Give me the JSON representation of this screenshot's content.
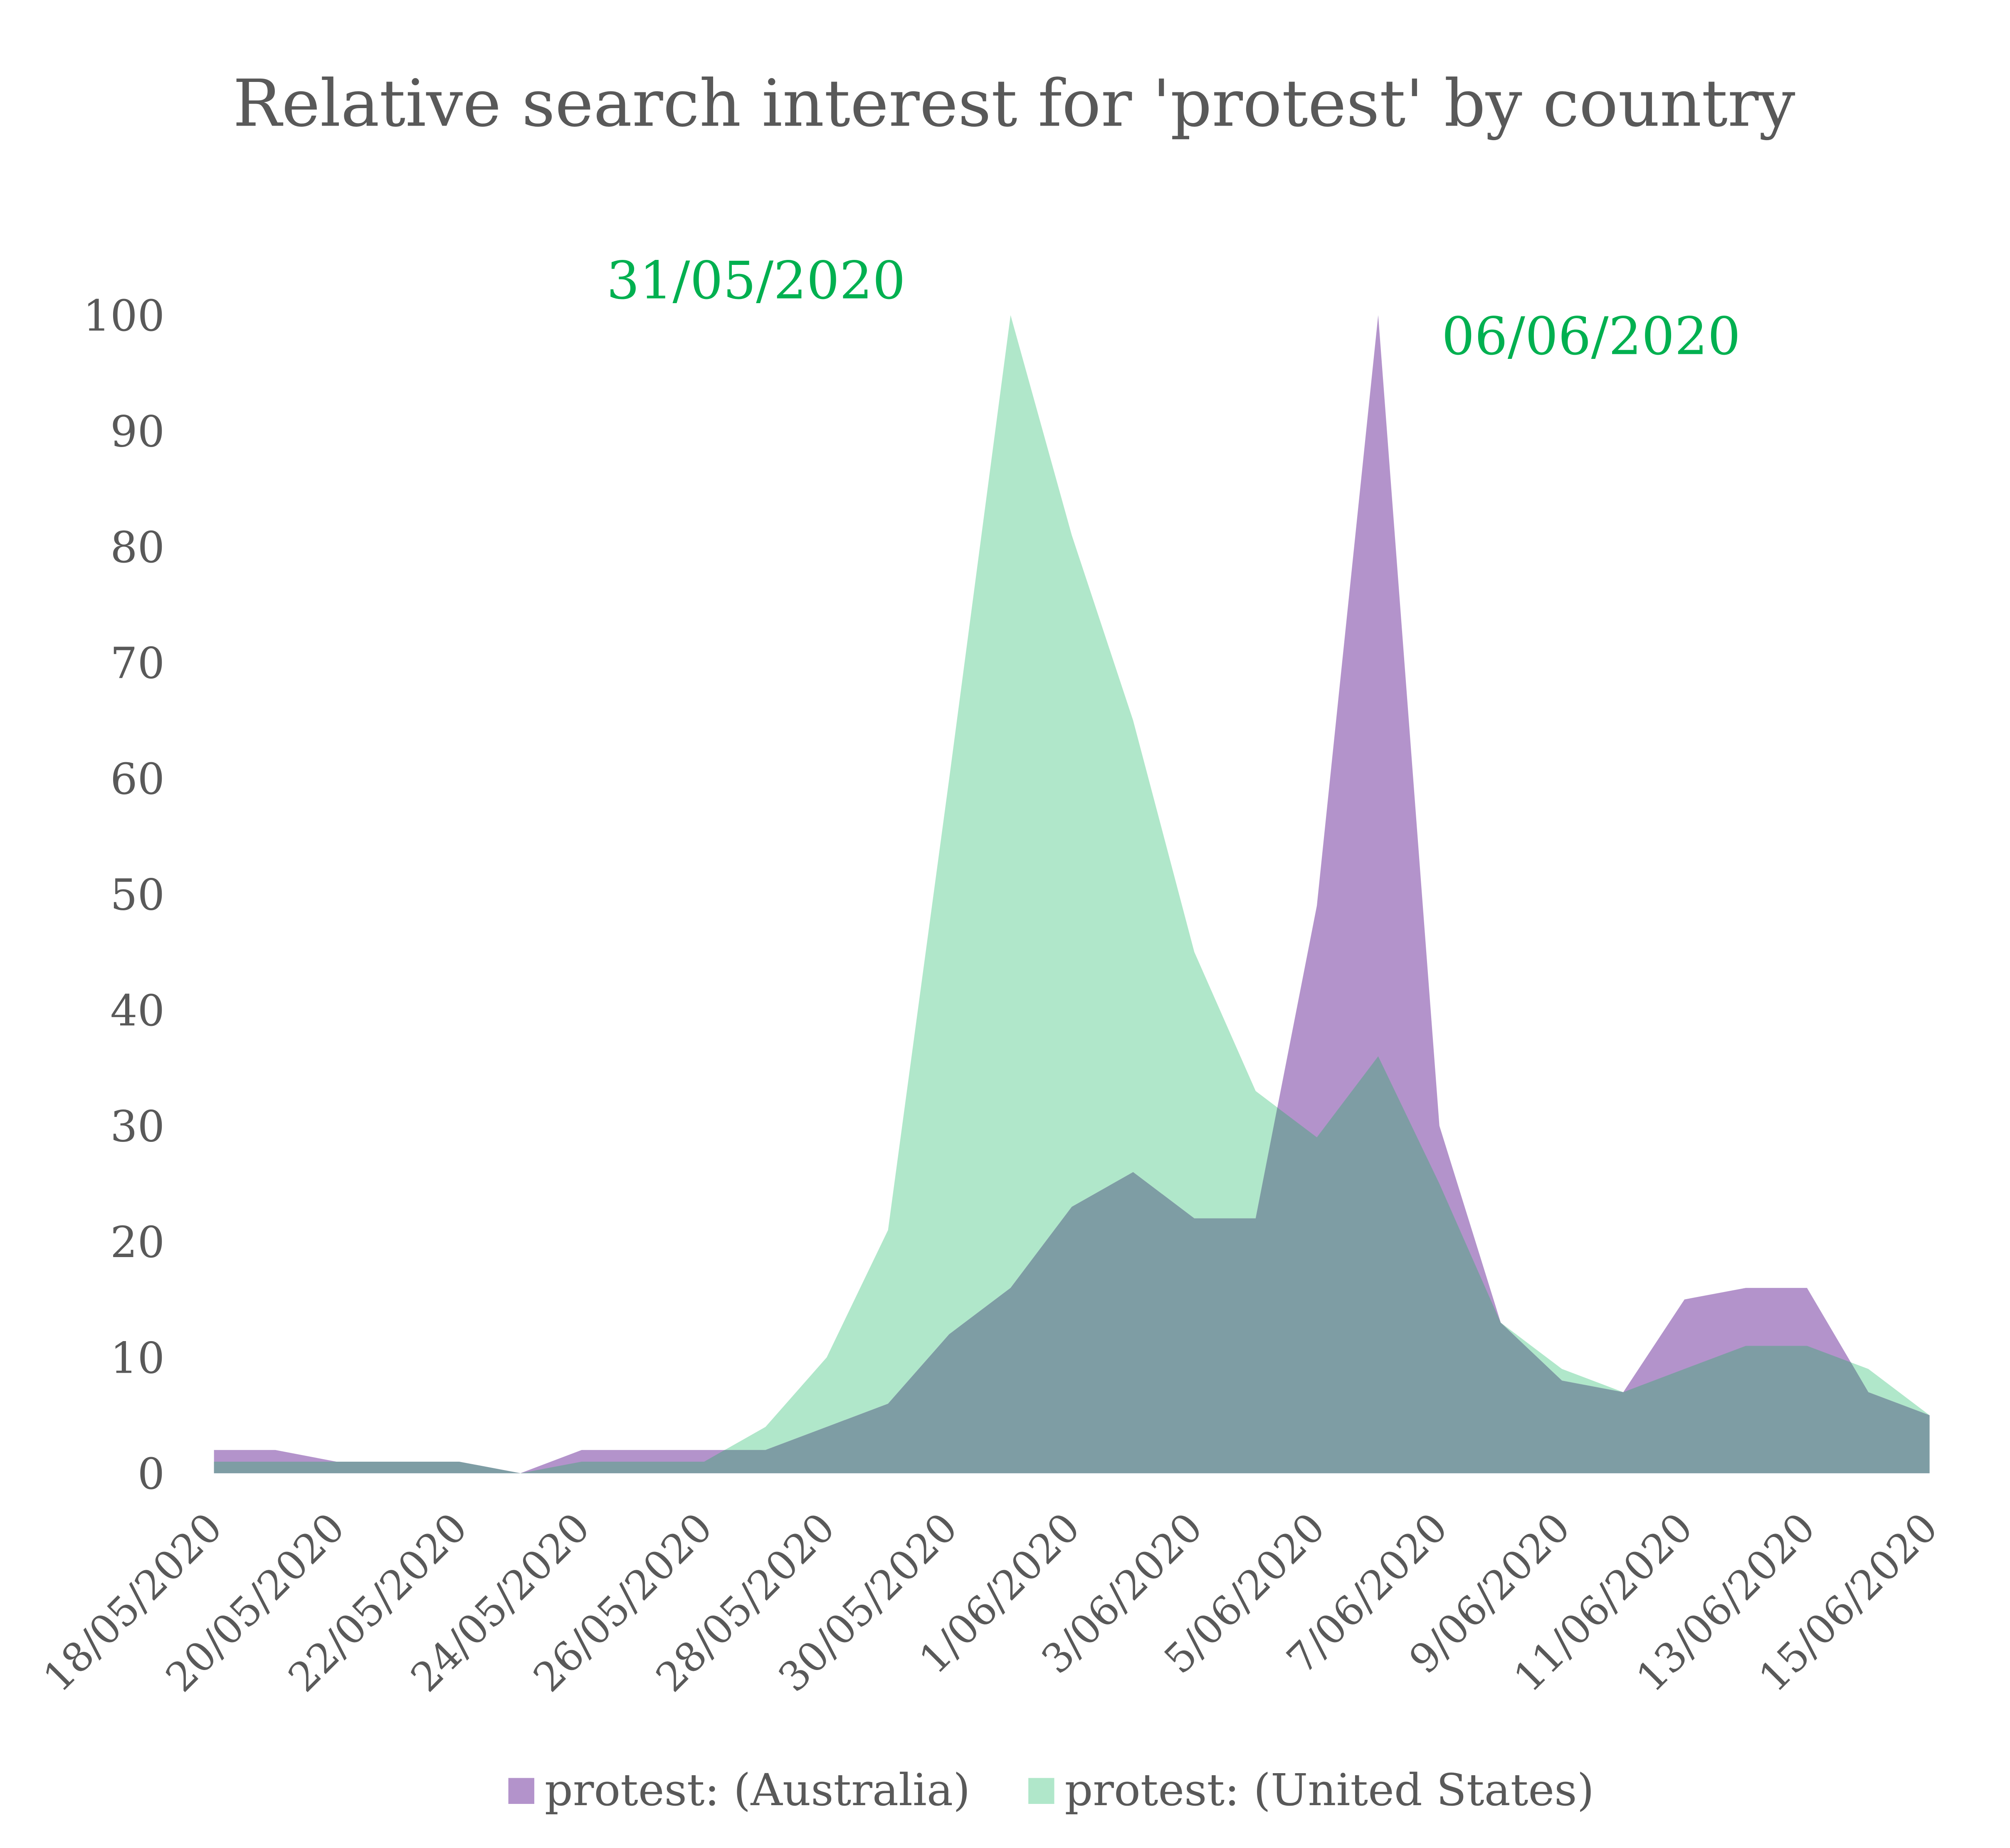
{
  "chart_data": {
    "type": "area",
    "title": "Relative search interest for 'protest' by country",
    "xlabel": "",
    "ylabel": "",
    "ylim": [
      0,
      100
    ],
    "yticks": [
      0,
      10,
      20,
      30,
      40,
      50,
      60,
      70,
      80,
      90,
      100
    ],
    "grid": false,
    "legend_position": "bottom",
    "categories": [
      "18/05/2020",
      "19/05/2020",
      "20/05/2020",
      "21/05/2020",
      "22/05/2020",
      "23/05/2020",
      "24/05/2020",
      "25/05/2020",
      "26/05/2020",
      "27/05/2020",
      "28/05/2020",
      "29/05/2020",
      "30/05/2020",
      "31/05/2020",
      "1/06/2020",
      "2/06/2020",
      "3/06/2020",
      "4/06/2020",
      "5/06/2020",
      "6/06/2020",
      "7/06/2020",
      "8/06/2020",
      "9/06/2020",
      "10/06/2020",
      "11/06/2020",
      "12/06/2020",
      "13/06/2020",
      "14/06/2020",
      "15/06/2020"
    ],
    "xtick_labels": [
      "18/05/2020",
      "20/05/2020",
      "22/05/2020",
      "24/05/2020",
      "26/05/2020",
      "28/05/2020",
      "30/05/2020",
      "1/06/2020",
      "3/06/2020",
      "5/06/2020",
      "7/06/2020",
      "9/06/2020",
      "11/06/2020",
      "13/06/2020",
      "15/06/2020"
    ],
    "series": [
      {
        "name": "protest: (Australia)",
        "color": "#B393CB",
        "values": [
          2,
          2,
          1,
          1,
          1,
          0,
          2,
          2,
          2,
          2,
          4,
          6,
          12,
          16,
          23,
          26,
          22,
          22,
          49,
          100,
          30,
          13,
          8,
          7,
          15,
          16,
          16,
          7,
          5
        ]
      },
      {
        "name": "protest: (United States)",
        "color": "#B0E7CA",
        "values": [
          1,
          1,
          1,
          1,
          1,
          0,
          1,
          1,
          1,
          4,
          10,
          21,
          60,
          100,
          81,
          65,
          45,
          33,
          29,
          36,
          25,
          13,
          9,
          7,
          9,
          11,
          11,
          9,
          5
        ]
      }
    ],
    "overlap_color": "#7E9DA4",
    "annotations": [
      {
        "text": "31/05/2020",
        "color": "#00B050"
      },
      {
        "text": "06/06/2020",
        "color": "#00B050"
      }
    ]
  }
}
